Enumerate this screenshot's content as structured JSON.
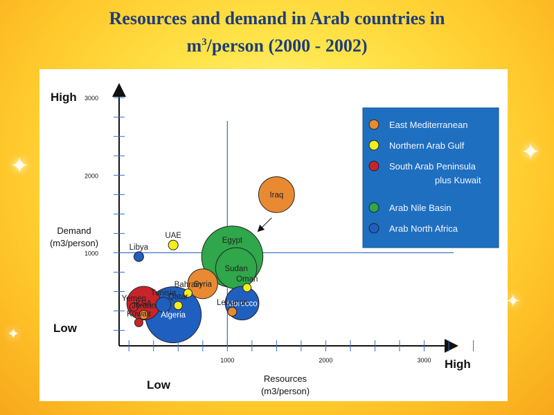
{
  "slide": {
    "title_line1": "Resources and demand in Arab countries in",
    "title_line2_pre": "m",
    "title_line2_sup": "3",
    "title_line2_post": "/person (2000 - 2002)"
  },
  "chart_data": {
    "type": "scatter",
    "title": "Resources and demand in Arab countries in m3/person (2000 - 2002)",
    "xlabel_line1": "Resources",
    "xlabel_line2": "(m3/person)",
    "ylabel_line1": "Demand",
    "ylabel_line2": "(m3/person)",
    "x_low_label": "Low",
    "x_high_label": "High",
    "y_low_label": "Low",
    "y_high_label": "High",
    "xlim": [
      -100,
      3700
    ],
    "ylim": [
      -200,
      3100
    ],
    "x_ticks": [
      "1000",
      "2000",
      "3000"
    ],
    "y_ticks": [
      "1000",
      "2000",
      "3000"
    ],
    "reference_lines": {
      "x": 1000,
      "y": 1000
    },
    "grid": false,
    "legend_position": "right",
    "group_colors": {
      "East Mediterranean": "#e98a32",
      "Northern Arab Gulf": "#f4ee1e",
      "South Arab Peninsula plus Kuwait": "#c8242a",
      "Arab Nile Basin": "#2fa74a",
      "Arab North Africa": "#1f5fbf"
    },
    "legend": [
      {
        "label": "East Mediterranean",
        "color": "#e98a32"
      },
      {
        "label": "Northern Arab Gulf",
        "color": "#f4ee1e"
      },
      {
        "label": "South Arab Peninsula",
        "label2": "plus Kuwait",
        "color": "#c8242a"
      },
      {
        "label": "Arab Nile Basin",
        "color": "#2fa74a"
      },
      {
        "label": "Arab North Africa",
        "color": "#1f5fbf"
      }
    ],
    "points": [
      {
        "name": "Algeria",
        "group": "Arab North Africa",
        "x": 450,
        "y": 200,
        "r": 0.075
      },
      {
        "name": "Morocco",
        "group": "Arab North Africa",
        "x": 1150,
        "y": 350,
        "r": 0.045
      },
      {
        "name": "Egypt",
        "group": "Arab Nile Basin",
        "x": 1050,
        "y": 950,
        "r": 0.082
      },
      {
        "name": "Sudan",
        "group": "Arab Nile Basin",
        "x": 1090,
        "y": 800,
        "r": 0.055
      },
      {
        "name": "Iraq",
        "group": "East Mediterranean",
        "x": 1500,
        "y": 1750,
        "r": 0.048
      },
      {
        "name": "Syria",
        "group": "East Mediterranean",
        "x": 750,
        "y": 600,
        "r": 0.04
      },
      {
        "name": "Lebanon",
        "group": "East Mediterranean",
        "x": 1050,
        "y": 240,
        "r": 0.012
      },
      {
        "name": "Jordan",
        "group": "East Mediterranean",
        "x": 150,
        "y": 200,
        "r": 0.012
      },
      {
        "name": "UAE",
        "group": "Northern Arab Gulf",
        "x": 450,
        "y": 1100,
        "r": 0.013
      },
      {
        "name": "Oman",
        "group": "Northern Arab Gulf",
        "x": 1200,
        "y": 550,
        "r": 0.01
      },
      {
        "name": "Qatar",
        "group": "Northern Arab Gulf",
        "x": 500,
        "y": 320,
        "r": 0.01
      },
      {
        "name": "Bahrain",
        "group": "Northern Arab Gulf",
        "x": 600,
        "y": 480,
        "r": 0.008
      },
      {
        "name": "KSA",
        "group": "South Arab Peninsula plus Kuwait",
        "x": 150,
        "y": 350,
        "r": 0.045
      },
      {
        "name": "Yemen",
        "group": "South Arab Peninsula plus Kuwait",
        "x": 50,
        "y": 300,
        "r": 0.01
      },
      {
        "name": "Kuwait",
        "group": "South Arab Peninsula plus Kuwait",
        "x": 100,
        "y": 100,
        "r": 0.01
      },
      {
        "name": "Tunisia",
        "group": "Arab North Africa",
        "x": 350,
        "y": 330,
        "r": 0.02
      },
      {
        "name": "Libya",
        "group": "Arab North Africa",
        "x": 100,
        "y": 950,
        "r": 0.013
      }
    ]
  }
}
